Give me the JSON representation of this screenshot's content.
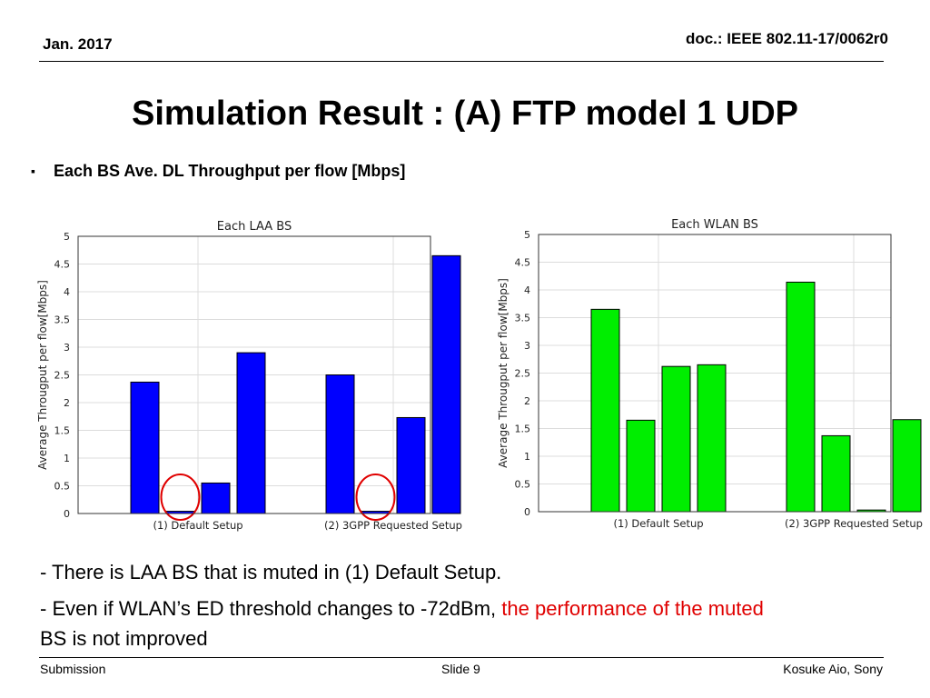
{
  "header": {
    "date": "Jan. 2017",
    "doc": "doc.: IEEE 802.11-17/0062r0"
  },
  "title": "Simulation Result : (A) FTP model 1 UDP",
  "bullet": {
    "text": "Each BS Ave. DL Throughput per flow [Mbps]"
  },
  "chart_data": [
    {
      "type": "bar",
      "title": "Each LAA BS",
      "ylabel": "Average Througput per flow[Mbps]",
      "xlabel": "",
      "ylim": [
        0,
        5
      ],
      "yticks": [
        "0",
        "0.5",
        "1",
        "1.5",
        "2",
        "2.5",
        "3",
        "3.5",
        "4",
        "4.5",
        "5"
      ],
      "grid": true,
      "bar_color": "#0000ff",
      "categories": [
        "(1) Default Setup",
        "(2) 3GPP Requested Setup"
      ],
      "groups": [
        [
          2.37,
          0.04,
          0.55,
          2.9
        ],
        [
          2.5,
          0.04,
          1.73,
          4.65
        ]
      ],
      "highlight_color": "#e00000"
    },
    {
      "type": "bar",
      "title": "Each WLAN BS",
      "ylabel": "Average Througput per flow[Mbps]",
      "xlabel": "",
      "ylim": [
        0,
        5
      ],
      "yticks": [
        "0",
        "0.5",
        "1",
        "1.5",
        "2",
        "2.5",
        "3",
        "3.5",
        "4",
        "4.5",
        "5"
      ],
      "grid": true,
      "bar_color": "#00ee00",
      "categories": [
        "(1) Default Setup",
        "(2) 3GPP Requested Setup"
      ],
      "groups": [
        [
          3.65,
          1.65,
          2.62,
          2.65
        ],
        [
          4.14,
          1.37,
          0.03,
          1.66
        ]
      ]
    }
  ],
  "notes": {
    "line1": "- There is LAA BS that is muted in (1) Default Setup.",
    "line2_plain": "- Even if WLAN’s ED threshold changes to -72dBm, ",
    "line2_red": "the performance of the muted",
    "line3_red": "BS is not improved"
  },
  "footer": {
    "left": "Submission",
    "center": "Slide 9",
    "right": "Kosuke Aio, Sony"
  }
}
